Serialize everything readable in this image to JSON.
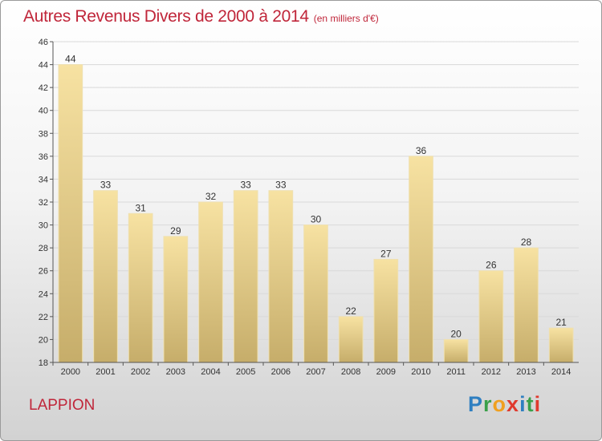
{
  "chart_data": {
    "type": "bar",
    "title": "Autres Revenus Divers de 2000 à 2014",
    "subtitle": "(en milliers d'€)",
    "xlabel": "",
    "ylabel": "",
    "categories": [
      "2000",
      "2001",
      "2002",
      "2003",
      "2004",
      "2005",
      "2006",
      "2007",
      "2008",
      "2009",
      "2010",
      "2011",
      "2012",
      "2013",
      "2014"
    ],
    "values": [
      44,
      33,
      31,
      29,
      32,
      33,
      33,
      30,
      22,
      27,
      36,
      20,
      26,
      28,
      21
    ],
    "ylim": [
      18,
      46
    ],
    "yticks": [
      18,
      20,
      22,
      24,
      26,
      28,
      30,
      32,
      34,
      36,
      38,
      40,
      42,
      44,
      46
    ],
    "grid": true,
    "legend": "none",
    "bar_color": "#e6cc86"
  },
  "commune": "LAPPION",
  "logo": {
    "letters": [
      {
        "char": "P",
        "color": "#2f7fc1"
      },
      {
        "char": "r",
        "color": "#3aa04a"
      },
      {
        "char": "o",
        "color": "#f0a020"
      },
      {
        "char": "x",
        "color": "#e03a2e"
      },
      {
        "char": "i",
        "color": "#2f7fc1"
      },
      {
        "char": "t",
        "color": "#3aa04a"
      },
      {
        "char": "i",
        "color": "#e03a2e"
      }
    ]
  }
}
